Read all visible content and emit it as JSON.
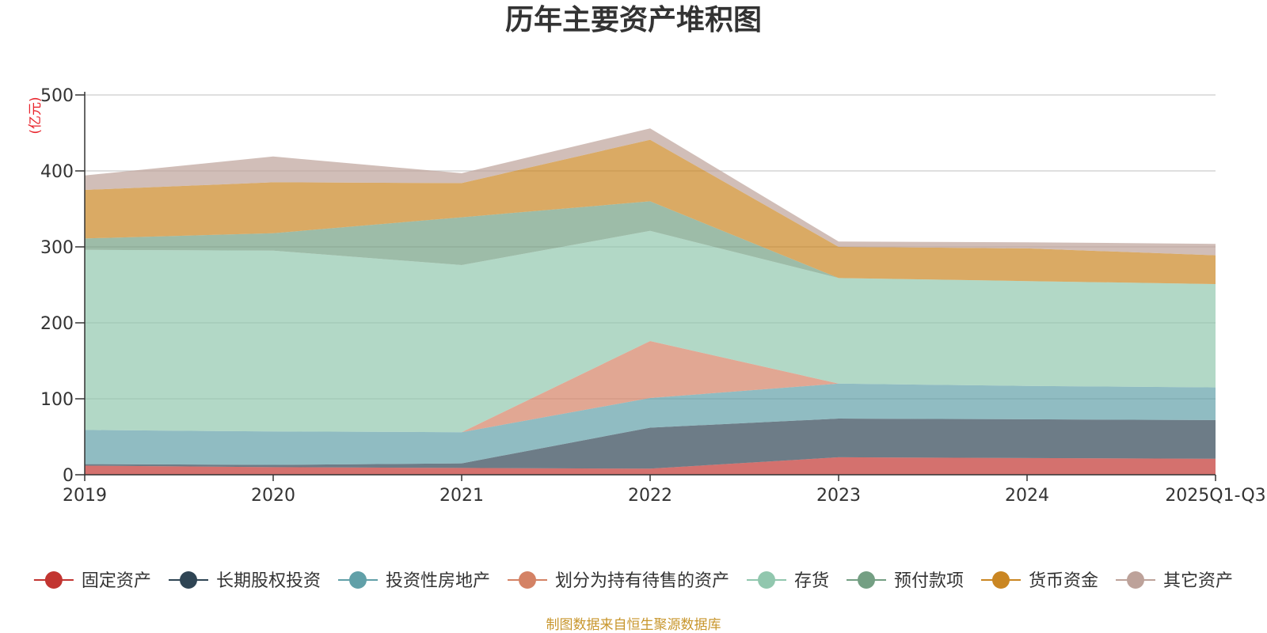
{
  "chart_data": {
    "type": "area",
    "stacked": true,
    "title": "历年主要资产堆积图",
    "unit_label": "(亿元)",
    "categories": [
      "2019",
      "2020",
      "2021",
      "2022",
      "2023",
      "2024",
      "2025Q1-Q3"
    ],
    "ylim": [
      0,
      500
    ],
    "yticks": [
      0,
      100,
      200,
      300,
      400,
      500
    ],
    "grid": true,
    "legend_position": "bottom",
    "series": [
      {
        "name": "固定资产",
        "color": "#c23531",
        "values": [
          12,
          10,
          9,
          8,
          23,
          22,
          21
        ]
      },
      {
        "name": "长期股权投资",
        "color": "#2f4554",
        "values": [
          2,
          3,
          6,
          54,
          51,
          51,
          51
        ]
      },
      {
        "name": "投资性房地产",
        "color": "#61a0a8",
        "values": [
          45,
          44,
          41,
          39,
          46,
          44,
          43
        ]
      },
      {
        "name": "划分为持有待售的资产",
        "color": "#d48265",
        "values": [
          0,
          0,
          0,
          75,
          0,
          0,
          0
        ]
      },
      {
        "name": "存货",
        "color": "#91c7ae",
        "values": [
          237,
          238,
          220,
          145,
          139,
          138,
          136
        ]
      },
      {
        "name": "预付款项",
        "color": "#749f83",
        "values": [
          15,
          23,
          63,
          39,
          0,
          0,
          0
        ]
      },
      {
        "name": "货币资金",
        "color": "#ca8622",
        "values": [
          64,
          67,
          45,
          81,
          41,
          43,
          38
        ]
      },
      {
        "name": "其它资产",
        "color": "#bda29a",
        "values": [
          19,
          34,
          13,
          15,
          7,
          8,
          15
        ]
      }
    ],
    "source_note": "制图数据来自恒生聚源数据库"
  }
}
